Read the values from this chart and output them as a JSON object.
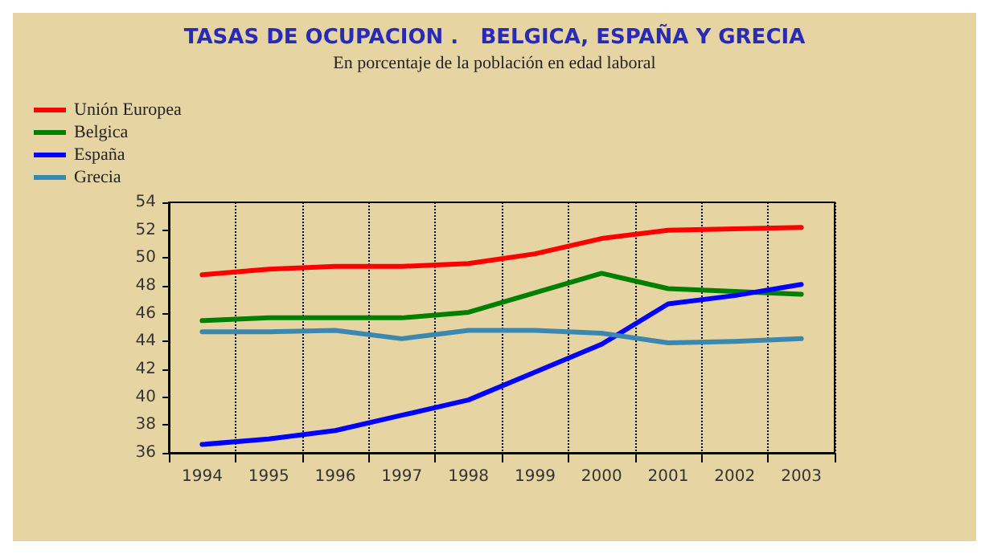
{
  "chart_data": {
    "type": "line",
    "title": "TASAS DE OCUPACION .   BELGICA, ESPAÑA Y GRECIA",
    "subtitle": "En porcentaje de la población en edad laboral",
    "categories": [
      "1994",
      "1995",
      "1996",
      "1997",
      "1998",
      "1999",
      "2000",
      "2001",
      "2002",
      "2003"
    ],
    "series": [
      {
        "name": "Unión Europea",
        "color": "#ff0000",
        "values": [
          48.8,
          49.2,
          49.4,
          49.4,
          49.6,
          50.3,
          51.4,
          52.0,
          52.1,
          52.2
        ]
      },
      {
        "name": "Belgica",
        "color": "#008000",
        "values": [
          45.5,
          45.7,
          45.7,
          45.7,
          46.1,
          47.5,
          48.9,
          47.8,
          47.6,
          47.4
        ]
      },
      {
        "name": "España",
        "color": "#0000ff",
        "values": [
          36.6,
          37.0,
          37.6,
          38.7,
          39.8,
          41.8,
          43.8,
          46.7,
          47.3,
          48.1
        ]
      },
      {
        "name": "Grecia",
        "color": "#3a88b0",
        "values": [
          44.7,
          44.7,
          44.8,
          44.2,
          44.8,
          44.8,
          44.6,
          43.9,
          44.0,
          44.2
        ]
      }
    ],
    "ylim": [
      36,
      54
    ],
    "yticks": [
      36,
      38,
      40,
      42,
      44,
      46,
      48,
      50,
      52,
      54
    ],
    "grid": "x",
    "legend": "top left",
    "marker": "none",
    "line_style": "solid"
  }
}
